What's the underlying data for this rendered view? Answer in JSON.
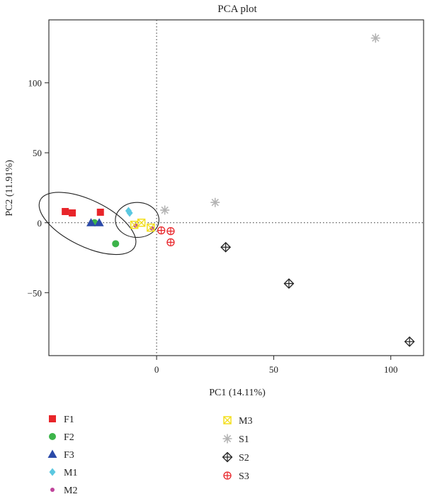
{
  "chart_data": {
    "type": "scatter",
    "title": "PCA plot",
    "xlabel": "PC1 (14.11%)",
    "ylabel": "PC2 (11.91%)",
    "xlim": [
      -46,
      114
    ],
    "ylim": [
      -95,
      145
    ],
    "xticks": [
      0,
      50,
      100
    ],
    "yticks": [
      -50,
      0,
      50,
      100
    ],
    "reference_lines": {
      "x": 0,
      "y": 0,
      "style": "dotted"
    },
    "legend_position": "below",
    "series": [
      {
        "name": "F1",
        "color": "#e8252a",
        "marker": "square",
        "points": [
          [
            -39,
            8
          ],
          [
            -36,
            7
          ],
          [
            -24,
            7.5
          ]
        ]
      },
      {
        "name": "F2",
        "color": "#3cb44a",
        "marker": "circle",
        "points": [
          [
            -26.5,
            0
          ],
          [
            -17.5,
            -15
          ]
        ]
      },
      {
        "name": "F3",
        "color": "#2b4aa8",
        "marker": "triangle",
        "points": [
          [
            -28,
            0
          ],
          [
            -24.5,
            0
          ]
        ]
      },
      {
        "name": "M1",
        "color": "#5bc8e0",
        "marker": "diamond",
        "points": [
          [
            -12,
            8.5
          ],
          [
            -11.5,
            7
          ]
        ]
      },
      {
        "name": "M2",
        "color": "#c0449b",
        "marker": "dot",
        "points": [
          [
            -9,
            -2
          ],
          [
            -2,
            -4
          ]
        ]
      },
      {
        "name": "M3",
        "color": "#f3df1e",
        "marker": "boxx",
        "points": [
          [
            -9.5,
            -1.5
          ],
          [
            -6.5,
            0
          ],
          [
            -2.5,
            -3.5
          ]
        ]
      },
      {
        "name": "S1",
        "color": "#b4b4b4",
        "marker": "asterisk",
        "points": [
          [
            3.5,
            9
          ],
          [
            25,
            14.5
          ],
          [
            93.5,
            132
          ]
        ]
      },
      {
        "name": "S2",
        "color": "#222222",
        "marker": "diamondplus",
        "points": [
          [
            29.5,
            -17.5
          ],
          [
            56.5,
            -43.5
          ],
          [
            108,
            -85
          ]
        ]
      },
      {
        "name": "S3",
        "color": "#e8252a",
        "marker": "circleplus",
        "points": [
          [
            2,
            -5.5
          ],
          [
            6,
            -6
          ],
          [
            6,
            -14
          ]
        ]
      }
    ],
    "ellipses": [
      {
        "cx": -29.5,
        "cy": -0.5,
        "rx": 22.5,
        "ry": 16.5,
        "rotate_deg": 26
      },
      {
        "cx": -8.3,
        "cy": 2.0,
        "rx": 9.3,
        "ry": 12.5,
        "rotate_deg": 0
      }
    ]
  }
}
